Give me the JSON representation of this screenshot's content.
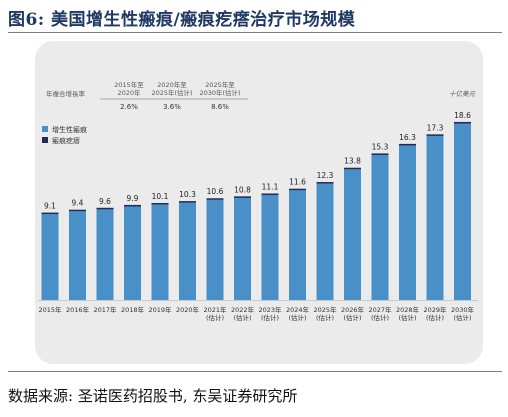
{
  "figure": {
    "title": "图6:  美国增生性瘢痕/瘢痕疙瘩治疗市场规模",
    "source": "数据来源:  圣诺医药招股书, 东吴证券研究所"
  },
  "chart_data": {
    "type": "bar",
    "stacked": true,
    "unit": "十亿美元",
    "categories": [
      [
        "2015年"
      ],
      [
        "2016年"
      ],
      [
        "2017年"
      ],
      [
        "2018年"
      ],
      [
        "2019年"
      ],
      [
        "2020年"
      ],
      [
        "2021年",
        "(估计)"
      ],
      [
        "2022年",
        "(估计)"
      ],
      [
        "2023年",
        "(估计)"
      ],
      [
        "2024年",
        "(估计)"
      ],
      [
        "2025年",
        "(估计)"
      ],
      [
        "2026年",
        "(估计)"
      ],
      [
        "2027年",
        "(估计)"
      ],
      [
        "2028年",
        "(估计)"
      ],
      [
        "2029年",
        "(估计)"
      ],
      [
        "2030年",
        "(估计)"
      ]
    ],
    "totals": [
      "9.1",
      "9.4",
      "9.6",
      "9.9",
      "10.1",
      "10.3",
      "10.6",
      "10.8",
      "11.1",
      "11.6",
      "12.3",
      "13.8",
      "15.3",
      "16.3",
      "17.3",
      "18.6"
    ],
    "series": [
      {
        "name": "增生性瘢痕",
        "color": "#4a90c8",
        "values": [
          9.0,
          9.3,
          9.5,
          9.8,
          10.0,
          10.2,
          10.5,
          10.7,
          11.0,
          11.5,
          12.2,
          13.7,
          15.2,
          16.2,
          17.2,
          18.5
        ]
      },
      {
        "name": "瘢痕疙瘩",
        "color": "#1f2d5c",
        "values": [
          0.1,
          0.1,
          0.1,
          0.1,
          0.1,
          0.1,
          0.1,
          0.1,
          0.1,
          0.1,
          0.1,
          0.1,
          0.1,
          0.1,
          0.1,
          0.1
        ]
      }
    ],
    "ylim": [
      0,
      19.5
    ],
    "grid": false,
    "legend_position": "top-left",
    "growth_rates": {
      "label": "年複合增長率",
      "periods": [
        {
          "lines": [
            "2015年至",
            "2020年"
          ],
          "value": "2.6%"
        },
        {
          "lines": [
            "2020年至",
            "2025年(估计)"
          ],
          "value": "3.6%"
        },
        {
          "lines": [
            "2025年至",
            "2030年(估计)"
          ],
          "value": "8.6%"
        }
      ]
    }
  }
}
